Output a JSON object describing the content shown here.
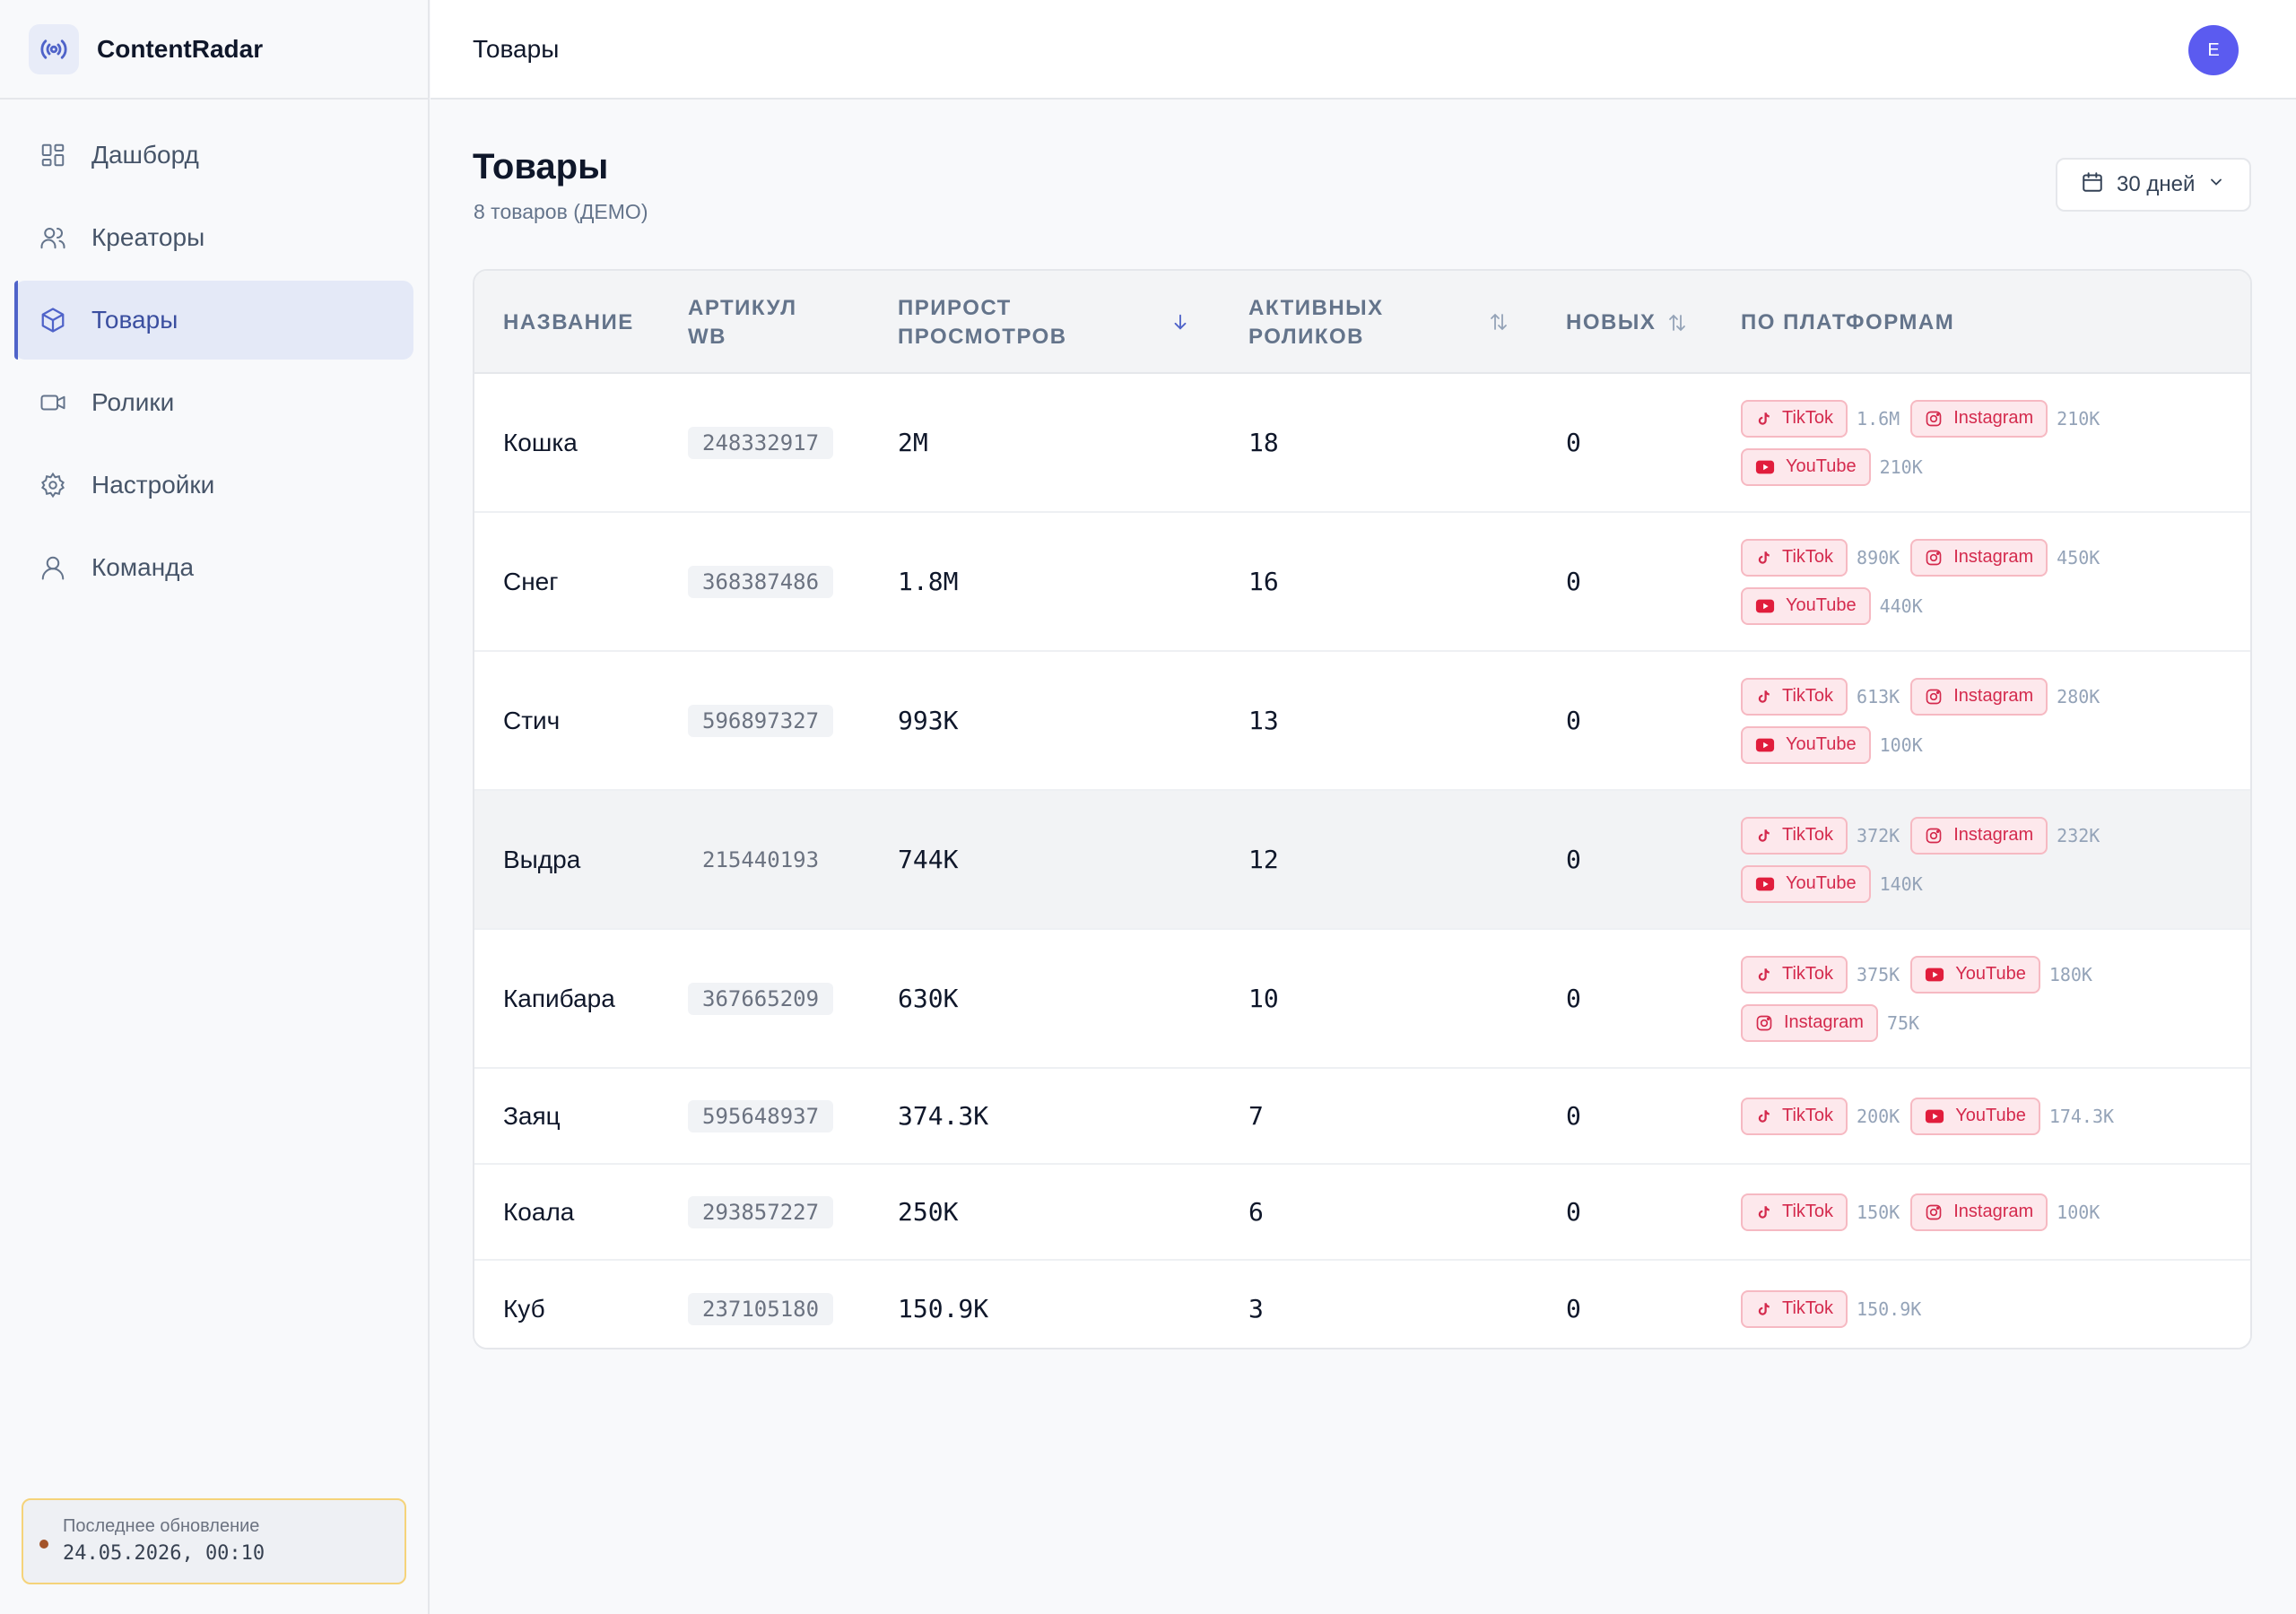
{
  "app": {
    "name": "ContentRadar"
  },
  "sidebar": {
    "items": [
      {
        "label": "Дашборд"
      },
      {
        "label": "Креаторы"
      },
      {
        "label": "Товары"
      },
      {
        "label": "Ролики"
      },
      {
        "label": "Настройки"
      },
      {
        "label": "Команда"
      }
    ],
    "active_index": 2,
    "update": {
      "label": "Последнее обновление",
      "value": "24.05.2026, 00:10"
    }
  },
  "topbar": {
    "title": "Товары",
    "avatar_initial": "E"
  },
  "page": {
    "title": "Товары",
    "subtitle": "8 товаров (ДЕМО)",
    "range_label": "30 дней"
  },
  "table": {
    "headers": {
      "name": "НАЗВАНИЕ",
      "sku_line1": "АРТИКУЛ",
      "sku_line2": "WB",
      "views_line1": "ПРИРОСТ",
      "views_line2": "ПРОСМОТРОВ",
      "active_line1": "АКТИВНЫХ",
      "active_line2": "РОЛИКОВ",
      "new": "НОВЫХ",
      "platforms": "ПО ПЛАТФОРМАМ"
    },
    "sort": {
      "column": "views",
      "direction": "desc"
    },
    "rows": [
      {
        "name": "Кошка",
        "sku": "248332917",
        "views": "2M",
        "active": "18",
        "new": "0",
        "platforms": [
          [
            {
              "p": "TikTok",
              "v": "1.6M"
            },
            {
              "p": "Instagram",
              "v": "210K"
            }
          ],
          [
            {
              "p": "YouTube",
              "v": "210K"
            }
          ]
        ]
      },
      {
        "name": "Снег",
        "sku": "368387486",
        "views": "1.8M",
        "active": "16",
        "new": "0",
        "platforms": [
          [
            {
              "p": "TikTok",
              "v": "890K"
            },
            {
              "p": "Instagram",
              "v": "450K"
            }
          ],
          [
            {
              "p": "YouTube",
              "v": "440K"
            }
          ]
        ]
      },
      {
        "name": "Стич",
        "sku": "596897327",
        "views": "993K",
        "active": "13",
        "new": "0",
        "platforms": [
          [
            {
              "p": "TikTok",
              "v": "613K"
            },
            {
              "p": "Instagram",
              "v": "280K"
            }
          ],
          [
            {
              "p": "YouTube",
              "v": "100K"
            }
          ]
        ]
      },
      {
        "name": "Выдра",
        "sku": "215440193",
        "views": "744K",
        "active": "12",
        "new": "0",
        "platforms": [
          [
            {
              "p": "TikTok",
              "v": "372K"
            },
            {
              "p": "Instagram",
              "v": "232K"
            }
          ],
          [
            {
              "p": "YouTube",
              "v": "140K"
            }
          ]
        ]
      },
      {
        "name": "Капибара",
        "sku": "367665209",
        "views": "630K",
        "active": "10",
        "new": "0",
        "platforms": [
          [
            {
              "p": "TikTok",
              "v": "375K"
            },
            {
              "p": "YouTube",
              "v": "180K"
            }
          ],
          [
            {
              "p": "Instagram",
              "v": "75K"
            }
          ]
        ]
      },
      {
        "name": "Заяц",
        "sku": "595648937",
        "views": "374.3K",
        "active": "7",
        "new": "0",
        "platforms": [
          [
            {
              "p": "TikTok",
              "v": "200K"
            },
            {
              "p": "YouTube",
              "v": "174.3K"
            }
          ]
        ]
      },
      {
        "name": "Коала",
        "sku": "293857227",
        "views": "250K",
        "active": "6",
        "new": "0",
        "platforms": [
          [
            {
              "p": "TikTok",
              "v": "150K"
            },
            {
              "p": "Instagram",
              "v": "100K"
            }
          ]
        ]
      },
      {
        "name": "Куб",
        "sku": "237105180",
        "views": "150.9K",
        "active": "3",
        "new": "0",
        "platforms": [
          [
            {
              "p": "TikTok",
              "v": "150.9K"
            }
          ]
        ]
      }
    ],
    "highlighted_row": 3
  },
  "colors": {
    "accent": "#4f63c9",
    "badge_text": "#d42a4d",
    "badge_bg": "#fde8ec",
    "avatar": "#5b5bf0"
  },
  "icons": {
    "brand": "radio-waves-icon",
    "nav": [
      "dashboard-icon",
      "users-icon",
      "box-icon",
      "video-icon",
      "gear-icon",
      "user-icon"
    ],
    "platforms": {
      "TikTok": "tiktok-icon",
      "Instagram": "instagram-icon",
      "YouTube": "youtube-icon"
    }
  }
}
